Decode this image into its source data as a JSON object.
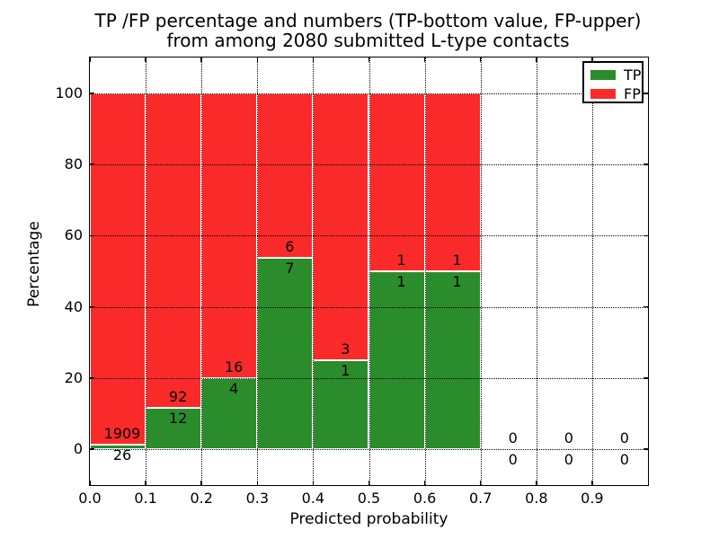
{
  "chart_data": {
    "type": "bar",
    "stacked": true,
    "title_line1": "TP /FP percentage and numbers (TP-bottom value, FP-upper)",
    "title_line2": "from among 2080 submitted L-type contacts",
    "xlabel": "Predicted probability",
    "ylabel": "Percentage",
    "xlim": [
      0.0,
      1.0
    ],
    "ylim": [
      -10,
      110
    ],
    "grid": "dotted",
    "bar_width": 0.1,
    "bin_left_edges": [
      0.0,
      0.1,
      0.2,
      0.3,
      0.4,
      0.5,
      0.6,
      0.7,
      0.8,
      0.9
    ],
    "xticks": {
      "values": [
        0.0,
        0.1,
        0.2,
        0.3,
        0.4,
        0.5,
        0.6,
        0.7,
        0.8,
        0.9
      ],
      "labels": [
        "0.0",
        "0.1",
        "0.2",
        "0.3",
        "0.4",
        "0.5",
        "0.6",
        "0.7",
        "0.8",
        "0.9"
      ]
    },
    "yticks": {
      "values": [
        0,
        20,
        40,
        60,
        80,
        100
      ],
      "labels": [
        "0",
        "20",
        "40",
        "60",
        "80",
        "100"
      ]
    },
    "series": [
      {
        "name": "TP",
        "color": "#2b8c2b",
        "counts": [
          26,
          12,
          4,
          7,
          1,
          1,
          1,
          0,
          0,
          0
        ],
        "percent": [
          1.3,
          11.5,
          20.0,
          53.8,
          25.0,
          50.0,
          50.0,
          0.0,
          0.0,
          0.0
        ]
      },
      {
        "name": "FP",
        "color": "#fa2a2a",
        "counts": [
          1909,
          92,
          16,
          6,
          3,
          1,
          1,
          0,
          0,
          0
        ],
        "percent": [
          98.7,
          88.5,
          80.0,
          46.2,
          75.0,
          50.0,
          50.0,
          0.0,
          0.0,
          0.0
        ]
      }
    ],
    "legend": {
      "position": "upper right",
      "entries": [
        {
          "label": "TP",
          "color": "#2b8c2b"
        },
        {
          "label": "FP",
          "color": "#fa2a2a"
        }
      ]
    }
  }
}
